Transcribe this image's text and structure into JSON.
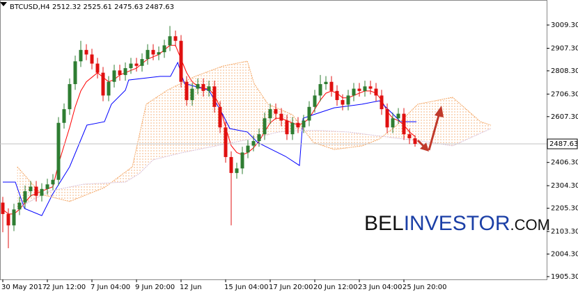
{
  "chart_data": {
    "type": "candlestick",
    "symbol": "BTCUSD,H4",
    "watermark": [
      "BEL",
      "INVESTOR",
      ".COM"
    ],
    "up_color": "#2e7d32",
    "down_color": "#e01010",
    "open": [
      2230,
      2180,
      2130,
      2200,
      2230,
      2280,
      2300,
      2260,
      2290,
      2310,
      2330,
      2580,
      2640,
      2750,
      2850,
      2900,
      2880,
      2840,
      2800,
      2700,
      2760,
      2810,
      2790,
      2820,
      2840,
      2830,
      2860,
      2900,
      2880,
      2890,
      2920,
      2960,
      2940,
      2760,
      2680,
      2730,
      2750,
      2720,
      2740,
      2650,
      2560,
      2430,
      2360,
      2380,
      2450,
      2480,
      2500,
      2530,
      2600,
      2640,
      2620,
      2590,
      2530,
      2580,
      2560,
      2590,
      2650,
      2700,
      2750,
      2760,
      2720,
      2680,
      2660,
      2700,
      2730,
      2720,
      2740,
      2730,
      2700,
      2640,
      2560,
      2600,
      2620,
      2530,
      2512.32
    ],
    "high": [
      2255,
      2205,
      2225,
      2255,
      2305,
      2325,
      2325,
      2315,
      2335,
      2355,
      2605,
      2665,
      2775,
      2875,
      2940,
      2925,
      2905,
      2865,
      2825,
      2785,
      2835,
      2835,
      2845,
      2865,
      2865,
      2885,
      2925,
      2925,
      2915,
      2945,
      3005,
      2985,
      2965,
      2785,
      2755,
      2775,
      2775,
      2765,
      2765,
      2675,
      2585,
      2455,
      2405,
      2475,
      2505,
      2525,
      2555,
      2625,
      2665,
      2665,
      2645,
      2615,
      2605,
      2605,
      2615,
      2675,
      2725,
      2790,
      2785,
      2785,
      2745,
      2705,
      2725,
      2755,
      2755,
      2765,
      2765,
      2755,
      2725,
      2665,
      2625,
      2645,
      2645,
      2555,
      2525.61
    ],
    "low": [
      2100,
      2030,
      2105,
      2175,
      2205,
      2255,
      2235,
      2235,
      2265,
      2285,
      2305,
      2555,
      2615,
      2725,
      2825,
      2855,
      2815,
      2775,
      2675,
      2675,
      2735,
      2765,
      2765,
      2795,
      2805,
      2805,
      2835,
      2855,
      2855,
      2865,
      2895,
      2915,
      2735,
      2655,
      2655,
      2705,
      2695,
      2695,
      2625,
      2535,
      2405,
      2130,
      2335,
      2355,
      2425,
      2455,
      2475,
      2505,
      2575,
      2595,
      2565,
      2505,
      2505,
      2535,
      2535,
      2565,
      2625,
      2675,
      2725,
      2695,
      2655,
      2635,
      2635,
      2675,
      2695,
      2695,
      2705,
      2675,
      2615,
      2535,
      2535,
      2575,
      2505,
      2487,
      2475.63
    ],
    "close": [
      2180,
      2130,
      2200,
      2230,
      2280,
      2300,
      2260,
      2290,
      2310,
      2330,
      2580,
      2640,
      2750,
      2850,
      2900,
      2880,
      2840,
      2800,
      2700,
      2760,
      2810,
      2790,
      2820,
      2840,
      2830,
      2860,
      2900,
      2880,
      2890,
      2920,
      2960,
      2940,
      2760,
      2680,
      2730,
      2750,
      2720,
      2740,
      2650,
      2560,
      2430,
      2360,
      2380,
      2450,
      2480,
      2500,
      2530,
      2600,
      2640,
      2620,
      2590,
      2530,
      2580,
      2560,
      2590,
      2650,
      2700,
      2750,
      2760,
      2720,
      2680,
      2660,
      2700,
      2730,
      2720,
      2740,
      2730,
      2700,
      2640,
      2560,
      2600,
      2620,
      2530,
      2512.32,
      2487.63
    ],
    "lines": [
      {
        "color": "#ff0000",
        "values": [
          2200,
          2180,
          2180,
          2200,
          2230,
          2260,
          2270,
          2280,
          2290,
          2300,
          2400,
          2480,
          2560,
          2650,
          2720,
          2760,
          2780,
          2800,
          2780,
          2760,
          2770,
          2790,
          2800,
          2810,
          2820,
          2840,
          2860,
          2870,
          2880,
          2900,
          2920,
          2920,
          2860,
          2800,
          2760,
          2740,
          2730,
          2730,
          2700,
          2650,
          2560,
          2480,
          2450,
          2440,
          2450,
          2470,
          2500,
          2540,
          2580,
          2600,
          2600,
          2590,
          2580,
          2570,
          2580,
          2600,
          2640,
          2680,
          2710,
          2720,
          2710,
          2690,
          2690,
          2700,
          2710,
          2720,
          2720,
          2710,
          2680,
          2630,
          2600,
          2590,
          2570,
          2540,
          2520
        ]
      },
      {
        "color": "#0000ff",
        "x": [
          0,
          2.25,
          3.9,
          7,
          8.9,
          12,
          15.1,
          18.25,
          19.5,
          22,
          22.6,
          28.25,
          30.1,
          31.4,
          32.6,
          37,
          39.5,
          40.75,
          43.9,
          45.75,
          48.25,
          50.75,
          53.25,
          53.9,
          55.75,
          59.5,
          64.5,
          67.6,
          69.5,
          71.4,
          74.25
        ],
        "values": [
          2320,
          2320,
          2204,
          2173,
          2265,
          2387,
          2570,
          2585,
          2662,
          2723,
          2768,
          2784,
          2784,
          2845,
          2753,
          2723,
          2616,
          2555,
          2540,
          2494,
          2463,
          2433,
          2393,
          2600,
          2616,
          2646,
          2662,
          2677,
          2631,
          2585,
          2585
        ]
      },
      {
        "color": "#f4a460",
        "x": [
          2.6,
          7,
          12,
          18.25,
          23.25,
          25.75,
          29.5,
          34.5,
          39.5,
          43.9,
          45.1,
          47.6,
          52,
          55.75,
          59.5,
          64.5,
          67.6,
          70.75,
          74.5,
          80.75,
          85.75,
          87.6
        ],
        "values": [
          2387,
          2265,
          2235,
          2296,
          2387,
          2662,
          2723,
          2784,
          2829,
          2851,
          2753,
          2662,
          2616,
          2494,
          2463,
          2479,
          2509,
          2570,
          2662,
          2692,
          2585,
          2570
        ]
      },
      {
        "color": "#d8bfd8",
        "x": [
          2.6,
          8.25,
          14.5,
          22,
          24.5,
          27,
          32,
          38.25,
          44.5,
          49.5,
          53.25,
          57,
          62,
          67,
          72,
          77,
          80.75,
          87.6
        ],
        "values": [
          2204,
          2280,
          2311,
          2320,
          2357,
          2418,
          2448,
          2479,
          2509,
          2540,
          2546,
          2546,
          2540,
          2524,
          2509,
          2494,
          2479,
          2555
        ]
      }
    ],
    "xlim": [
      -0.5,
      97.625
    ],
    "ylim": [
      1893,
      3113
    ],
    "xticks": [
      {
        "value": 0,
        "label": "30 May 2017"
      },
      {
        "value": 8,
        "label": "2 Jun 12:00"
      },
      {
        "value": 16,
        "label": "7 Jun 04:00"
      },
      {
        "value": 24,
        "label": "9 Jun 20:00"
      },
      {
        "value": 32,
        "label": "12 Jun"
      },
      {
        "value": 40,
        "label": "15 Jun 04:00"
      },
      {
        "value": 48,
        "label": "17 Jun 20:00"
      },
      {
        "value": 56,
        "label": "20 Jun 12:00"
      },
      {
        "value": 64,
        "label": "23 Jun 04:00"
      },
      {
        "value": 72,
        "label": "25 Jun 20:00"
      }
    ],
    "yticks": [
      {
        "value": 3009.3,
        "label": "3009.30"
      },
      {
        "value": 2907.3,
        "label": "2907.30"
      },
      {
        "value": 2808.3,
        "label": "2808.30"
      },
      {
        "value": 2706.3,
        "label": "2706.30"
      },
      {
        "value": 2607.3,
        "label": "2607.30"
      },
      {
        "value": 2406.3,
        "label": "2406.30"
      },
      {
        "value": 2304.3,
        "label": "2304.30"
      },
      {
        "value": 2205.3,
        "label": "2205.30"
      },
      {
        "value": 2103.3,
        "label": "2103.30"
      },
      {
        "value": 2004.3,
        "label": "2004.30"
      },
      {
        "value": 1905.3,
        "label": "1905.30"
      }
    ]
  }
}
